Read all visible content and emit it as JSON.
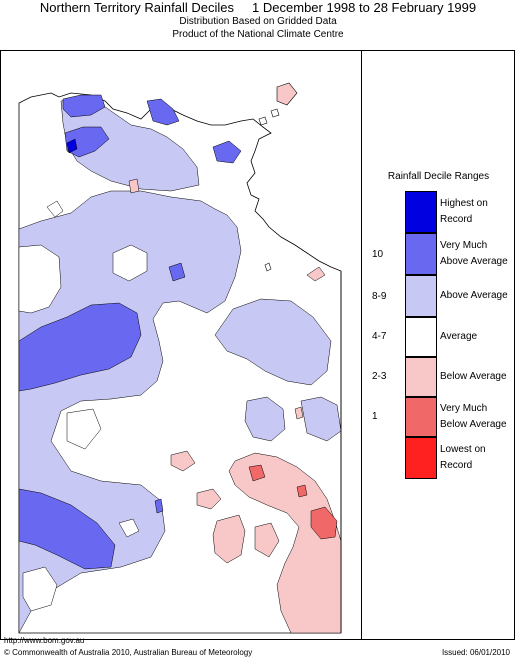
{
  "header": {
    "title": "Northern Territory Rainfall Deciles     1 December 1998 to 28 February 1999",
    "subtitle_1": "Distribution Based on Gridded Data",
    "subtitle_2": "Product of the National Climate Centre"
  },
  "legend": {
    "title": "Rainfall Decile Ranges",
    "items": [
      {
        "range": "",
        "label_1": "Highest on",
        "label_2": "Record",
        "color": "#0000e0"
      },
      {
        "range": "10",
        "label_1": "Very Much",
        "label_2": "Above Average",
        "color": "#6868f0"
      },
      {
        "range": "8-9",
        "label_1": "Above Average",
        "label_2": "",
        "color": "#c8c8f4"
      },
      {
        "range": "4-7",
        "label_1": "Average",
        "label_2": "",
        "color": "#ffffff"
      },
      {
        "range": "2-3",
        "label_1": "Below Average",
        "label_2": "",
        "color": "#f8c8c8"
      },
      {
        "range": "1",
        "label_1": "Very Much",
        "label_2": "Below Average",
        "color": "#f06868"
      },
      {
        "range": "",
        "label_1": "Lowest on",
        "label_2": "Record",
        "color": "#ff2020"
      }
    ]
  },
  "footer": {
    "url": "http://www.bom.gov.au",
    "copyright": "© Commonwealth of Australia 2010, Australian Bureau of Meteorology",
    "issued": "Issued: 06/01/2010"
  }
}
